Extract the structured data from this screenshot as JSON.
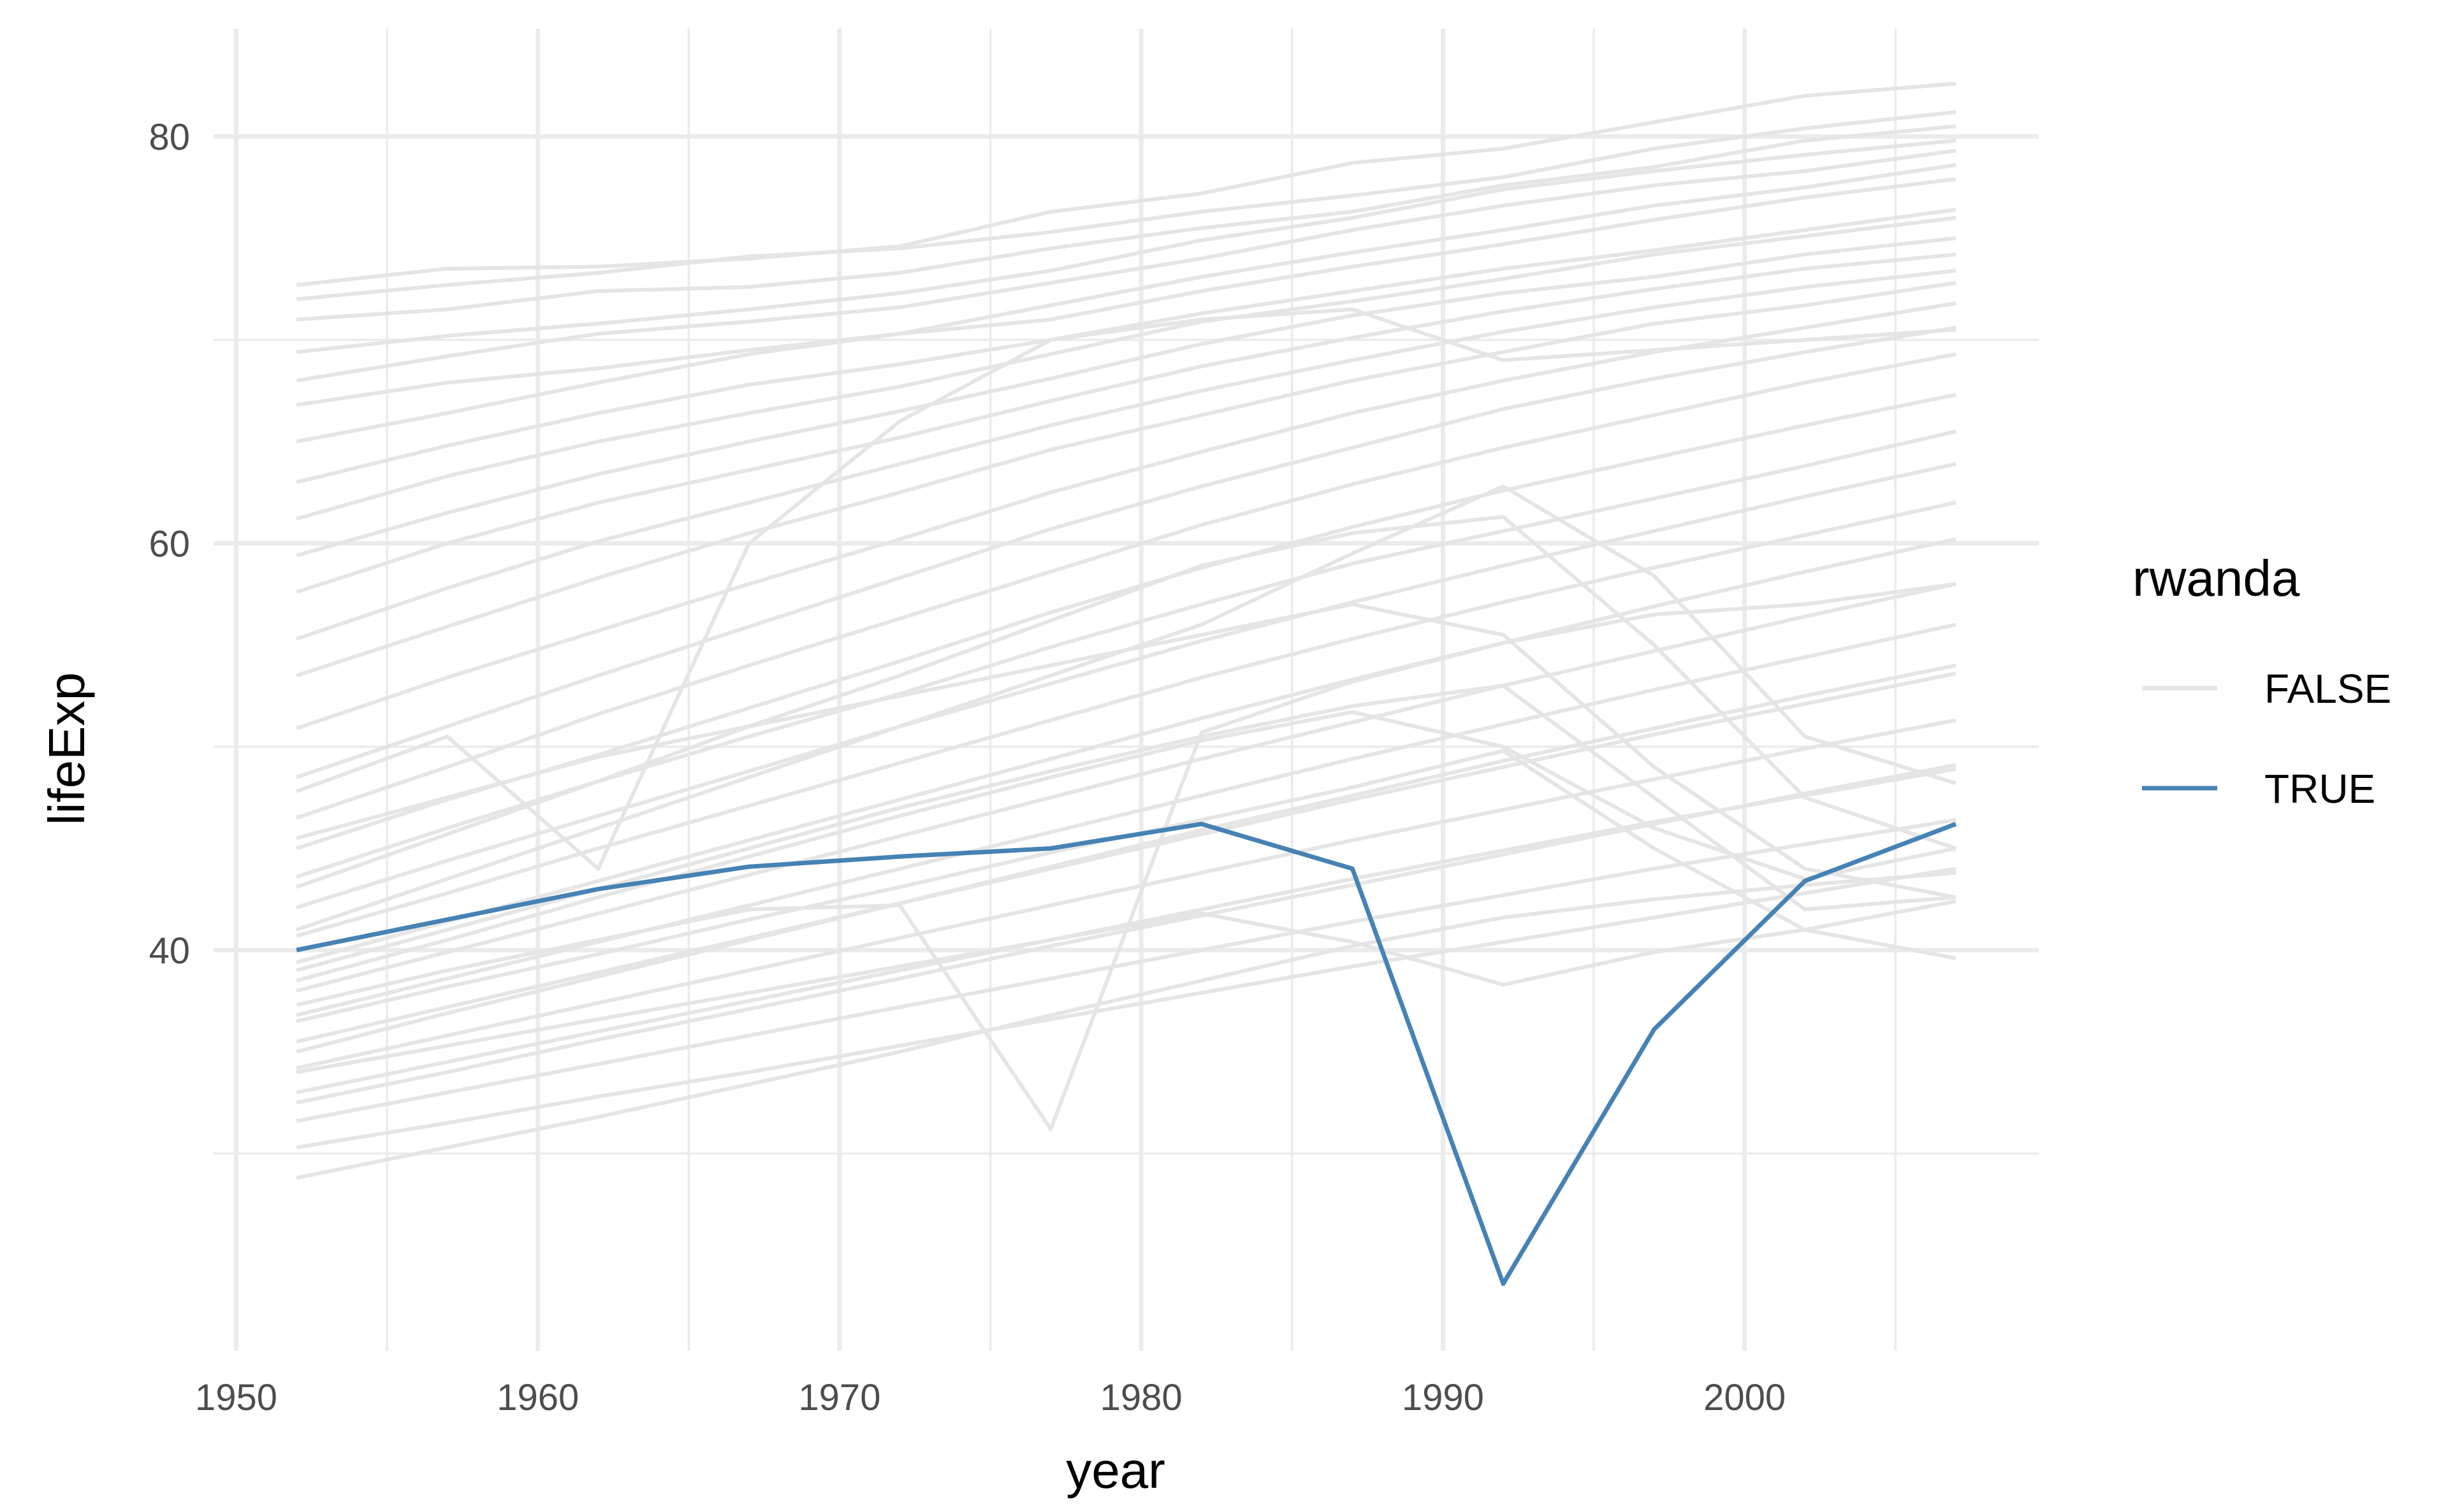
{
  "chart_data": {
    "type": "line",
    "xlabel": "year",
    "ylabel": "lifeExp",
    "xlim": [
      1949.25,
      2009.75
    ],
    "ylim": [
      20.3,
      85.3
    ],
    "x_major_ticks": [
      1950,
      1960,
      1970,
      1980,
      1990,
      2000
    ],
    "x_minor_ticks": [
      1955,
      1965,
      1975,
      1985,
      1995,
      2005
    ],
    "y_major_ticks": [
      40,
      60,
      80
    ],
    "y_minor_ticks": [
      30,
      50,
      70
    ],
    "x_tick_labels": [
      "1950",
      "1960",
      "1970",
      "1980",
      "1990",
      "2000"
    ],
    "y_tick_labels": [
      "40",
      "60",
      "80"
    ],
    "grid": true,
    "legend": {
      "title": "rwanda",
      "position": "right",
      "entries": [
        {
          "label": "FALSE",
          "color": "#e5e5e5"
        },
        {
          "label": "TRUE",
          "color": "#4682b4"
        }
      ]
    },
    "x": [
      1952,
      1957,
      1962,
      1967,
      1972,
      1977,
      1982,
      1987,
      1992,
      1997,
      2002,
      2007
    ],
    "series": [
      {
        "name": "TRUE",
        "color": "#4682b4",
        "values": [
          40.0,
          41.5,
          43.0,
          44.1,
          44.6,
          45.0,
          46.2,
          44.0,
          23.6,
          36.1,
          43.4,
          46.2
        ]
      },
      {
        "name": "FALSE",
        "color": "#e5e5e5",
        "values": [
          72.7,
          73.5,
          73.6,
          74.0,
          74.6,
          76.3,
          77.2,
          78.7,
          79.4,
          80.7,
          82.0,
          82.6
        ]
      },
      {
        "name": "FALSE",
        "color": "#e5e5e5",
        "values": [
          72.0,
          72.7,
          73.3,
          74.1,
          74.5,
          75.3,
          76.3,
          77.1,
          78.0,
          79.4,
          80.4,
          81.2
        ]
      },
      {
        "name": "FALSE",
        "color": "#e5e5e5",
        "values": [
          71.0,
          71.5,
          72.4,
          72.6,
          73.3,
          74.5,
          75.5,
          76.3,
          77.6,
          78.5,
          79.8,
          80.5
        ]
      },
      {
        "name": "FALSE",
        "color": "#e5e5e5",
        "values": [
          69.4,
          70.2,
          70.8,
          71.5,
          72.3,
          73.4,
          74.9,
          76.0,
          77.4,
          78.3,
          79.1,
          79.8
        ]
      },
      {
        "name": "FALSE",
        "color": "#e5e5e5",
        "values": [
          68.0,
          69.2,
          70.3,
          70.9,
          71.6,
          72.8,
          74.0,
          75.4,
          76.6,
          77.6,
          78.3,
          79.3
        ]
      },
      {
        "name": "FALSE",
        "color": "#e5e5e5",
        "values": [
          66.8,
          67.9,
          68.6,
          69.5,
          70.3,
          71.7,
          73.1,
          74.3,
          75.4,
          76.6,
          77.5,
          78.6
        ]
      },
      {
        "name": "FALSE",
        "color": "#e5e5e5",
        "values": [
          65.0,
          66.4,
          67.9,
          69.3,
          70.3,
          71.0,
          72.4,
          73.6,
          74.7,
          75.9,
          77.0,
          77.9
        ]
      },
      {
        "name": "FALSE",
        "color": "#e5e5e5",
        "values": [
          63.0,
          64.8,
          66.4,
          67.8,
          68.8,
          70.0,
          71.3,
          72.4,
          73.5,
          74.4,
          75.4,
          76.4
        ]
      },
      {
        "name": "FALSE",
        "color": "#e5e5e5",
        "values": [
          61.2,
          63.3,
          65.0,
          66.4,
          67.7,
          69.3,
          70.9,
          71.9,
          73.0,
          74.2,
          75.1,
          76.0
        ]
      },
      {
        "name": "FALSE",
        "color": "#e5e5e5",
        "values": [
          59.4,
          61.5,
          63.4,
          65.0,
          66.5,
          68.1,
          69.8,
          71.2,
          72.3,
          73.1,
          74.2,
          75.0
        ]
      },
      {
        "name": "FALSE",
        "color": "#e5e5e5",
        "values": [
          57.6,
          60.0,
          62.0,
          63.6,
          65.2,
          67.0,
          68.7,
          70.1,
          71.4,
          72.5,
          73.5,
          74.2
        ]
      },
      {
        "name": "FALSE",
        "color": "#e5e5e5",
        "values": [
          55.3,
          57.8,
          60.1,
          62.0,
          63.9,
          65.8,
          67.5,
          69.0,
          70.4,
          71.6,
          72.6,
          73.4
        ]
      },
      {
        "name": "FALSE",
        "color": "#e5e5e5",
        "values": [
          53.5,
          55.9,
          58.3,
          60.5,
          62.5,
          64.6,
          66.3,
          68.0,
          69.4,
          70.8,
          71.7,
          72.8
        ]
      },
      {
        "name": "FALSE",
        "color": "#e5e5e5",
        "values": [
          50.9,
          53.4,
          55.7,
          58.0,
          60.2,
          62.5,
          64.5,
          66.4,
          68.0,
          69.4,
          70.6,
          71.8
        ]
      },
      {
        "name": "FALSE",
        "color": "#e5e5e5",
        "values": [
          48.5,
          51.0,
          53.5,
          55.9,
          58.3,
          60.7,
          62.8,
          64.7,
          66.6,
          68.1,
          69.4,
          70.6
        ]
      },
      {
        "name": "FALSE",
        "color": "#e5e5e5",
        "values": [
          46.5,
          49.0,
          51.6,
          54.0,
          56.3,
          58.6,
          60.9,
          62.9,
          64.7,
          66.3,
          67.9,
          69.3
        ]
      },
      {
        "name": "FALSE",
        "color": "#e5e5e5",
        "values": [
          45.0,
          47.4,
          49.6,
          51.9,
          54.2,
          56.6,
          58.8,
          60.8,
          62.6,
          64.2,
          65.8,
          67.3
        ]
      },
      {
        "name": "FALSE",
        "color": "#e5e5e5",
        "values": [
          43.6,
          46.0,
          48.3,
          50.5,
          52.6,
          54.9,
          57.0,
          59.0,
          60.6,
          62.2,
          63.8,
          65.5
        ]
      },
      {
        "name": "FALSE",
        "color": "#e5e5e5",
        "values": [
          42.1,
          44.4,
          46.6,
          48.8,
          51.0,
          53.1,
          55.2,
          57.1,
          58.9,
          60.6,
          62.3,
          63.9
        ]
      },
      {
        "name": "FALSE",
        "color": "#e5e5e5",
        "values": [
          40.7,
          42.8,
          45.0,
          47.1,
          49.2,
          51.3,
          53.4,
          55.3,
          57.1,
          58.8,
          60.4,
          62.0
        ]
      },
      {
        "name": "FALSE",
        "color": "#e5e5e5",
        "values": [
          39.4,
          41.4,
          43.4,
          45.4,
          47.4,
          49.4,
          51.4,
          53.3,
          55.1,
          56.9,
          58.6,
          60.2
        ]
      },
      {
        "name": "FALSE",
        "color": "#e5e5e5",
        "values": [
          38.0,
          39.9,
          41.8,
          43.7,
          45.6,
          47.5,
          49.4,
          51.2,
          53.0,
          54.7,
          56.4,
          58.0
        ]
      },
      {
        "name": "FALSE",
        "color": "#e5e5e5",
        "values": [
          36.8,
          38.6,
          40.4,
          42.2,
          44.0,
          45.8,
          47.6,
          49.4,
          51.1,
          52.8,
          54.4,
          56.0
        ]
      },
      {
        "name": "FALSE",
        "color": "#e5e5e5",
        "values": [
          35.5,
          37.2,
          38.9,
          40.6,
          42.3,
          44.0,
          45.7,
          47.4,
          49.0,
          50.6,
          52.1,
          53.6
        ]
      },
      {
        "name": "FALSE",
        "color": "#e5e5e5",
        "values": [
          34.2,
          35.8,
          37.4,
          39.0,
          40.6,
          42.2,
          43.8,
          45.4,
          46.9,
          48.4,
          49.9,
          51.3
        ]
      },
      {
        "name": "FALSE",
        "color": "#e5e5e5",
        "values": [
          33.0,
          34.5,
          36.0,
          37.5,
          39.0,
          40.5,
          42.0,
          43.5,
          44.9,
          46.3,
          47.6,
          48.9
        ]
      },
      {
        "name": "FALSE",
        "color": "#e5e5e5",
        "values": [
          31.6,
          33.0,
          34.4,
          35.8,
          37.2,
          38.6,
          40.0,
          41.4,
          42.7,
          44.0,
          45.2,
          46.4
        ]
      },
      {
        "name": "FALSE",
        "color": "#e5e5e5",
        "values": [
          30.3,
          31.5,
          32.8,
          34.0,
          35.3,
          36.6,
          37.9,
          39.2,
          40.4,
          41.6,
          42.8,
          44.0
        ]
      },
      {
        "name": "FALSE",
        "color": "#e5e5e5",
        "values": [
          28.8,
          30.3,
          31.8,
          33.4,
          35.0,
          36.8,
          38.5,
          40.2,
          41.6,
          42.5,
          43.2,
          43.8
        ]
      },
      {
        "name": "FALSE",
        "color": "#e5e5e5",
        "values": [
          43.1,
          45.7,
          48.3,
          51.0,
          53.5,
          56.2,
          58.9,
          60.5,
          61.3,
          55.0,
          47.5,
          45.0
        ]
      },
      {
        "name": "FALSE",
        "color": "#e5e5e5",
        "values": [
          41.0,
          43.5,
          46.0,
          48.5,
          51.0,
          53.5,
          56.0,
          59.5,
          62.8,
          58.4,
          50.5,
          48.2
        ]
      },
      {
        "name": "FALSE",
        "color": "#e5e5e5",
        "values": [
          47.8,
          50.5,
          44.0,
          60.0,
          66.0,
          70.0,
          71.0,
          71.5,
          69.0,
          69.5,
          70.0,
          70.5
        ]
      },
      {
        "name": "FALSE",
        "color": "#e5e5e5",
        "values": [
          45.5,
          47.5,
          49.5,
          51.0,
          52.5,
          54.0,
          55.5,
          57.0,
          55.5,
          49.0,
          44.0,
          42.6
        ]
      },
      {
        "name": "FALSE",
        "color": "#e5e5e5",
        "values": [
          39.0,
          41.0,
          43.0,
          45.0,
          47.0,
          48.8,
          50.5,
          52.0,
          53.0,
          47.5,
          42.0,
          42.6
        ]
      },
      {
        "name": "FALSE",
        "color": "#e5e5e5",
        "values": [
          38.5,
          40.5,
          42.6,
          44.6,
          46.6,
          48.5,
          50.3,
          51.7,
          50.0,
          46.0,
          43.5,
          45.0
        ]
      },
      {
        "name": "FALSE",
        "color": "#e5e5e5",
        "values": [
          37.3,
          39.0,
          40.5,
          42.0,
          42.2,
          31.2,
          50.7,
          53.2,
          55.1,
          56.5,
          57.0,
          58.0
        ]
      },
      {
        "name": "FALSE",
        "color": "#e5e5e5",
        "values": [
          36.5,
          38.2,
          39.8,
          41.5,
          43.1,
          44.8,
          46.4,
          48.0,
          49.8,
          45.0,
          41.0,
          39.6
        ]
      },
      {
        "name": "FALSE",
        "color": "#e5e5e5",
        "values": [
          35.0,
          36.9,
          38.7,
          40.5,
          42.3,
          44.1,
          45.9,
          47.6,
          49.3,
          50.9,
          52.5,
          54.0
        ]
      },
      {
        "name": "FALSE",
        "color": "#e5e5e5",
        "values": [
          32.5,
          34.0,
          35.6,
          37.1,
          38.6,
          40.2,
          41.7,
          43.2,
          44.7,
          46.2,
          47.7,
          49.1
        ]
      },
      {
        "name": "FALSE",
        "color": "#e5e5e5",
        "values": [
          34.0,
          35.3,
          36.6,
          37.9,
          39.2,
          40.5,
          41.8,
          40.4,
          38.3,
          39.9,
          41.0,
          42.4
        ]
      }
    ]
  }
}
